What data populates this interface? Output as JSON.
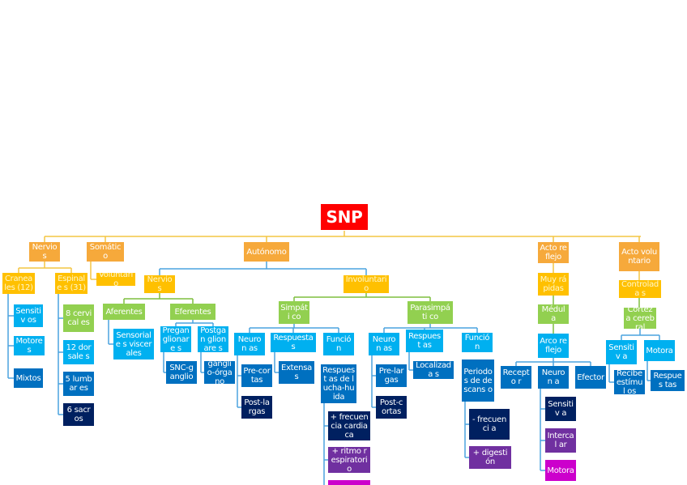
{
  "colors": {
    "root": "#ff0000",
    "orange": "#f6a93b",
    "gold": "#ffc000",
    "green": "#92d050",
    "cyan": "#00b0f0",
    "blue": "#0070c0",
    "navy": "#002060",
    "purple": "#7030a0",
    "magenta": "#cc00cc",
    "connector_yellow": "#f4c542",
    "connector_blue": "#4aa3df",
    "connector_green": "#7fbf3f"
  },
  "title": "SNP",
  "nodes": {
    "nervios_top": "Nervios",
    "craneales": "Craneales (12)",
    "sensitivos": "Sensitiv os",
    "motores": "Motores",
    "mixtos": "Mixtos",
    "espinales": "Espinale s (31)",
    "cervicales": "8 cervical es",
    "dorsales": "12 dorsale s",
    "lumbares": "5 lumbar es",
    "sacros": "6 sacros",
    "somatico": "Somático",
    "voluntario": "Voluntario",
    "autonomo": "Autónomo",
    "nervios_auto": "Nervios",
    "aferentes": "Aferentes",
    "sensoriales": "Sensoriale s viscerales",
    "eferentes": "Eferentes",
    "preganglionares": "Pregan glionare s",
    "snc_ganglio": "SNC-ganglio",
    "postganglionares": "Postgan glionare s",
    "ganglio_organo": "ganglio-órgano",
    "involuntario": "Involuntario",
    "simpatico": "Simpáti co",
    "neuronas_s": "Neuron as",
    "precortas": "Pre-cortas",
    "postlargas": "Post-largas",
    "respuestas_s": "Respuestas",
    "extensas": "Extensa s",
    "funcion_s": "Función",
    "lucha_huida": "Respuest as de lucha-huida",
    "frecuencia_cardiaca": "+ frecuencia cardiaca",
    "ritmo_respiratorio": "+ ritmo respiratori o",
    "parasimpatico": "Parasimpáti co",
    "neuronas_p": "Neuron as",
    "prelargas": "Pre-largas",
    "postcortas": "Post-cortas",
    "respuestas_p": "Respuest as",
    "localizadas": "Localizada s",
    "funcion_p": "Función",
    "descanso": "Periodo s de descans o",
    "frecuencia_minus": "- frecuenci a",
    "digestion": "+ digestión",
    "acto_reflejo": "Acto reflejo",
    "muy_rapidas": "Muy rápidas",
    "medula": "Médula",
    "arco_reflejo": "Arco reflejo",
    "receptor": "Recepto r",
    "neurona_r": "Neuron a",
    "sensitiva_r": "Sensitiv a",
    "intercalar": "Intercal ar",
    "motora_r": "Motora",
    "efector": "Efector",
    "acto_voluntario": "Acto voluntario",
    "controladas": "Controlada s",
    "corteza_cerebral": "Corteza cerebral",
    "sensitiva_v": "Sensitiv a",
    "recibe_estimulos": "Recibe estímul os",
    "motora_v": "Motora",
    "respuestas_v": "Respues tas"
  }
}
